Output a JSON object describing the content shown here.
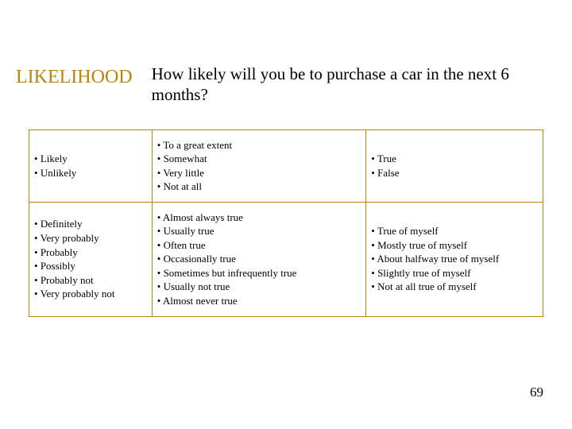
{
  "heading": "LIKELIHOOD",
  "heading_color": "#b8860b",
  "question": "How likely will you be to purchase a car in the next 6 months?",
  "table": {
    "border_color": "#b8860b",
    "rows": [
      {
        "col1": [
          "Likely",
          "Unlikely"
        ],
        "col2": [
          "To a great extent",
          "Somewhat",
          "Very little",
          "Not at all"
        ],
        "col3": [
          "True",
          "False"
        ]
      },
      {
        "col1": [
          "Definitely",
          "Very probably",
          "Probably",
          "Possibly",
          "Probably not",
          "Very probably not"
        ],
        "col2": [
          "Almost always true",
          "Usually true",
          "Often true",
          "Occasionally true",
          "Sometimes but infrequently true",
          "Usually not true",
          "Almost never true"
        ],
        "col3": [
          "True of myself",
          "Mostly true of myself",
          "About halfway true of myself",
          "Slightly true of myself",
          "Not at all true of myself"
        ]
      }
    ]
  },
  "page_number": "69"
}
